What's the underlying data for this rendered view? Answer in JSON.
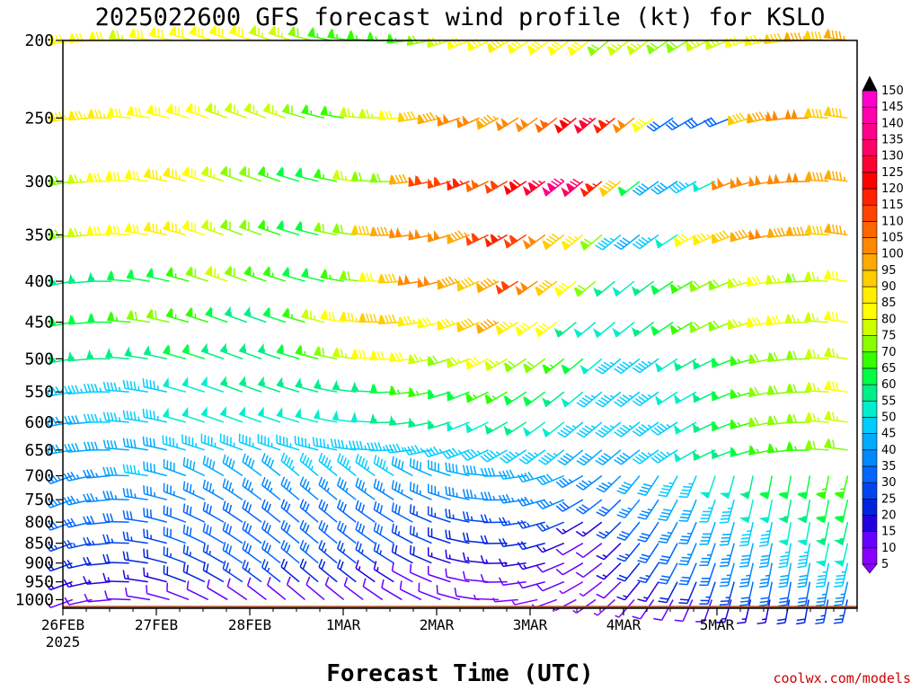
{
  "chart_data": {
    "type": "wind-barb profile",
    "title": "2025022600 GFS forecast wind profile (kt) for KSLO",
    "xlabel": "Forecast Time (UTC)",
    "credit": "coolwx.com/models",
    "y_axis": {
      "unit": "hPa",
      "direction": "inverted",
      "range": [
        1025,
        200
      ],
      "ticks": [
        200,
        250,
        300,
        350,
        400,
        450,
        500,
        550,
        600,
        650,
        700,
        750,
        800,
        850,
        900,
        950,
        1000
      ]
    },
    "x_axis": {
      "range_days": [
        0,
        8.5
      ],
      "ticks": [
        {
          "day": 0,
          "label": "26FEB"
        },
        {
          "day": 1,
          "label": "27FEB"
        },
        {
          "day": 2,
          "label": "28FEB"
        },
        {
          "day": 3,
          "label": "1MAR"
        },
        {
          "day": 4,
          "label": "2MAR"
        },
        {
          "day": 5,
          "label": "3MAR"
        },
        {
          "day": 6,
          "label": "4MAR"
        },
        {
          "day": 7,
          "label": "5MAR"
        }
      ],
      "year_label": "2025"
    },
    "ground_color": "#a0522d",
    "colorbar": {
      "levels": [
        5,
        10,
        15,
        20,
        25,
        30,
        35,
        40,
        45,
        50,
        55,
        60,
        65,
        70,
        75,
        80,
        85,
        90,
        95,
        100,
        105,
        110,
        115,
        120,
        125,
        130,
        135,
        140,
        145,
        150
      ],
      "colors": [
        "#8800ff",
        "#6600ff",
        "#2200dd",
        "#0022dd",
        "#0044ee",
        "#0066ff",
        "#0088ff",
        "#00aaff",
        "#00ccff",
        "#00eecc",
        "#00ee88",
        "#00ff44",
        "#33ff00",
        "#88ff00",
        "#ccff00",
        "#ffff00",
        "#ffee00",
        "#ffcc00",
        "#ffaa00",
        "#ff8800",
        "#ff6600",
        "#ff4400",
        "#ff2200",
        "#ff0000",
        "#ff0033",
        "#ff0066",
        "#ff0088",
        "#ff00aa",
        "#ff00cc",
        "#dd00dd"
      ]
    },
    "series": [
      {
        "level": 200,
        "speed": [
          80,
          80,
          80,
          75,
          80,
          80,
          80,
          80,
          80,
          80,
          75,
          75,
          70,
          65,
          65,
          65,
          65,
          65,
          70,
          75,
          80,
          80,
          85,
          80,
          80,
          80,
          80,
          70,
          75,
          75,
          70,
          70,
          75,
          75,
          80,
          85,
          90,
          95,
          90,
          95
        ]
      },
      {
        "level": 250,
        "speed": [
          85,
          85,
          85,
          80,
          80,
          80,
          80,
          80,
          75,
          75,
          75,
          75,
          70,
          65,
          65,
          75,
          75,
          80,
          90,
          95,
          100,
          100,
          95,
          100,
          100,
          105,
          120,
          125,
          115,
          100,
          80,
          30,
          30,
          30,
          30,
          90,
          95,
          100,
          100,
          90,
          90
        ]
      },
      {
        "level": 300,
        "speed": [
          70,
          75,
          80,
          80,
          80,
          85,
          85,
          80,
          75,
          70,
          70,
          65,
          60,
          60,
          65,
          75,
          70,
          70,
          95,
          110,
          110,
          115,
          105,
          110,
          120,
          125,
          135,
          130,
          115,
          90,
          60,
          40,
          40,
          45,
          50,
          100,
          100,
          100,
          100,
          100,
          95,
          95
        ]
      },
      {
        "level": 350,
        "speed": [
          70,
          75,
          80,
          80,
          80,
          85,
          85,
          80,
          75,
          70,
          70,
          65,
          60,
          60,
          70,
          70,
          90,
          95,
          100,
          100,
          100,
          95,
          110,
          115,
          110,
          100,
          90,
          85,
          70,
          45,
          40,
          45,
          50,
          80,
          85,
          90,
          95,
          100,
          95,
          95,
          90,
          95
        ]
      },
      {
        "level": 400,
        "speed": [
          55,
          55,
          55,
          60,
          60,
          60,
          65,
          70,
          75,
          70,
          65,
          65,
          60,
          60,
          65,
          70,
          80,
          90,
          100,
          100,
          95,
          90,
          95,
          110,
          100,
          90,
          80,
          70,
          55,
          50,
          55,
          60,
          65,
          70,
          70,
          75,
          80,
          75,
          70,
          75,
          80
        ]
      },
      {
        "level": 450,
        "speed": [
          60,
          60,
          60,
          65,
          70,
          70,
          65,
          65,
          60,
          55,
          55,
          60,
          65,
          75,
          80,
          85,
          90,
          90,
          85,
          80,
          85,
          90,
          95,
          85,
          80,
          80,
          55,
          50,
          50,
          50,
          55,
          60,
          65,
          70,
          70,
          75,
          80,
          80,
          75,
          75,
          80
        ]
      },
      {
        "level": 500,
        "speed": [
          55,
          55,
          55,
          55,
          55,
          55,
          60,
          60,
          55,
          55,
          55,
          55,
          60,
          65,
          70,
          75,
          80,
          80,
          80,
          75,
          70,
          75,
          80,
          75,
          70,
          70,
          65,
          60,
          50,
          45,
          45,
          45,
          50,
          55,
          55,
          60,
          65,
          70,
          70,
          70,
          75,
          75
        ]
      },
      {
        "level": 550,
        "speed": [
          45,
          45,
          45,
          45,
          45,
          45,
          50,
          50,
          50,
          55,
          55,
          55,
          55,
          55,
          55,
          55,
          55,
          60,
          65,
          65,
          60,
          60,
          65,
          65,
          60,
          60,
          55,
          50,
          45,
          45,
          45,
          45,
          50,
          50,
          55,
          60,
          65,
          70,
          70,
          70,
          75,
          80
        ]
      },
      {
        "level": 600,
        "speed": [
          40,
          40,
          45,
          45,
          45,
          45,
          50,
          50,
          50,
          50,
          50,
          50,
          50,
          50,
          50,
          50,
          50,
          55,
          55,
          55,
          55,
          50,
          50,
          55,
          55,
          50,
          50,
          45,
          45,
          45,
          45,
          45,
          45,
          50,
          55,
          60,
          65,
          70,
          70,
          70,
          75,
          75
        ]
      },
      {
        "level": 650,
        "speed": [
          40,
          40,
          40,
          40,
          40,
          40,
          45,
          45,
          45,
          45,
          45,
          45,
          45,
          45,
          45,
          45,
          45,
          45,
          45,
          45,
          45,
          45,
          45,
          45,
          45,
          45,
          45,
          40,
          40,
          40,
          40,
          45,
          45,
          50,
          55,
          55,
          60,
          65,
          65,
          65,
          70,
          70
        ]
      },
      {
        "level": 700,
        "speed": [
          35,
          35,
          35,
          40,
          45,
          40,
          40,
          40,
          40,
          40,
          40,
          40,
          45,
          45,
          45,
          45,
          45,
          45,
          40,
          40,
          40,
          40,
          40,
          40,
          40,
          40,
          40,
          35,
          35,
          35,
          40,
          40,
          45,
          45,
          50,
          50,
          55,
          60,
          60,
          60,
          65,
          65
        ]
      },
      {
        "level": 750,
        "speed": [
          35,
          35,
          35,
          35,
          35,
          35,
          35,
          35,
          35,
          35,
          35,
          35,
          35,
          35,
          35,
          35,
          35,
          35,
          35,
          35,
          35,
          35,
          35,
          35,
          35,
          35,
          35,
          30,
          30,
          30,
          35,
          35,
          40,
          40,
          45,
          45,
          50,
          50,
          55,
          55,
          60,
          60
        ]
      },
      {
        "level": 800,
        "speed": [
          30,
          30,
          30,
          30,
          30,
          30,
          30,
          30,
          30,
          30,
          30,
          30,
          30,
          30,
          30,
          30,
          30,
          30,
          30,
          25,
          25,
          25,
          25,
          25,
          25,
          25,
          25,
          15,
          15,
          25,
          30,
          30,
          35,
          35,
          40,
          40,
          45,
          45,
          50,
          50,
          55,
          55
        ]
      },
      {
        "level": 850,
        "speed": [
          25,
          25,
          25,
          25,
          25,
          25,
          30,
          30,
          30,
          30,
          30,
          30,
          30,
          30,
          30,
          30,
          30,
          30,
          25,
          25,
          20,
          20,
          20,
          20,
          20,
          20,
          15,
          10,
          10,
          15,
          25,
          30,
          30,
          35,
          35,
          35,
          40,
          40,
          45,
          45,
          50,
          50
        ]
      },
      {
        "level": 900,
        "speed": [
          20,
          20,
          20,
          20,
          20,
          20,
          25,
          25,
          25,
          30,
          30,
          30,
          30,
          30,
          25,
          25,
          25,
          25,
          20,
          20,
          15,
          15,
          15,
          15,
          15,
          15,
          10,
          10,
          10,
          15,
          20,
          25,
          30,
          30,
          30,
          35,
          35,
          35,
          40,
          40,
          45,
          45
        ]
      },
      {
        "level": 950,
        "speed": [
          15,
          15,
          15,
          15,
          15,
          15,
          20,
          20,
          20,
          25,
          25,
          25,
          20,
          20,
          20,
          20,
          15,
          15,
          10,
          10,
          10,
          10,
          10,
          10,
          10,
          10,
          10,
          5,
          5,
          10,
          15,
          15,
          20,
          20,
          25,
          25,
          30,
          30,
          30,
          30,
          35,
          35
        ]
      },
      {
        "level": 1000,
        "speed": [
          10,
          10,
          10,
          10,
          10,
          10,
          10,
          10,
          10,
          10,
          10,
          10,
          10,
          10,
          10,
          10,
          10,
          10,
          10,
          10,
          10,
          10,
          5,
          5,
          5,
          5,
          5,
          5,
          5,
          5,
          10,
          10,
          10,
          10,
          15,
          15,
          15,
          20,
          20,
          25,
          25
        ]
      }
    ]
  }
}
